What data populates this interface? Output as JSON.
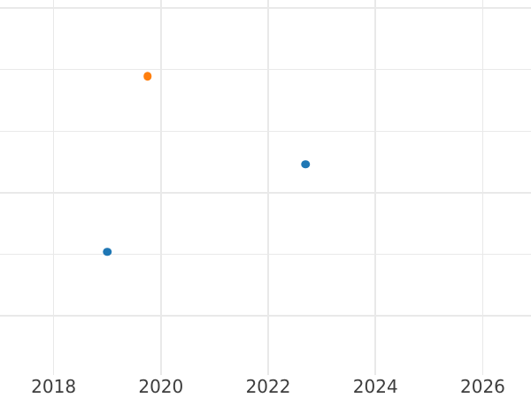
{
  "chart_data": {
    "type": "scatter",
    "title": "",
    "xlabel": "",
    "ylabel": "",
    "x_ticks": [
      2018,
      2020,
      2022,
      2024,
      2026
    ],
    "x_tick_labels": [
      "2018",
      "2020",
      "2022",
      "2024",
      "2026"
    ],
    "xlim": [
      2017.0,
      2026.9
    ],
    "ylim": [
      0.04,
      6.13
    ],
    "y_gridlines": [
      1,
      2,
      3,
      4,
      5,
      6
    ],
    "y_unit": "gridline-index (y tick labels cropped out of view)",
    "grid": true,
    "legend": null,
    "series": [
      {
        "name": "blue-series",
        "color": "#1f77b4",
        "marker": "circle",
        "points": [
          {
            "x": 2019.0,
            "y": 2.04
          },
          {
            "x": 2022.7,
            "y": 3.46
          }
        ]
      },
      {
        "name": "orange-series",
        "color": "#ff7f0e",
        "marker": "circle",
        "points": [
          {
            "x": 2019.75,
            "y": 4.89
          }
        ]
      }
    ],
    "styles": {
      "background": "#ffffff",
      "gridline_color": "#e9e9e9",
      "tick_label_color": "#3d3d3d"
    }
  }
}
